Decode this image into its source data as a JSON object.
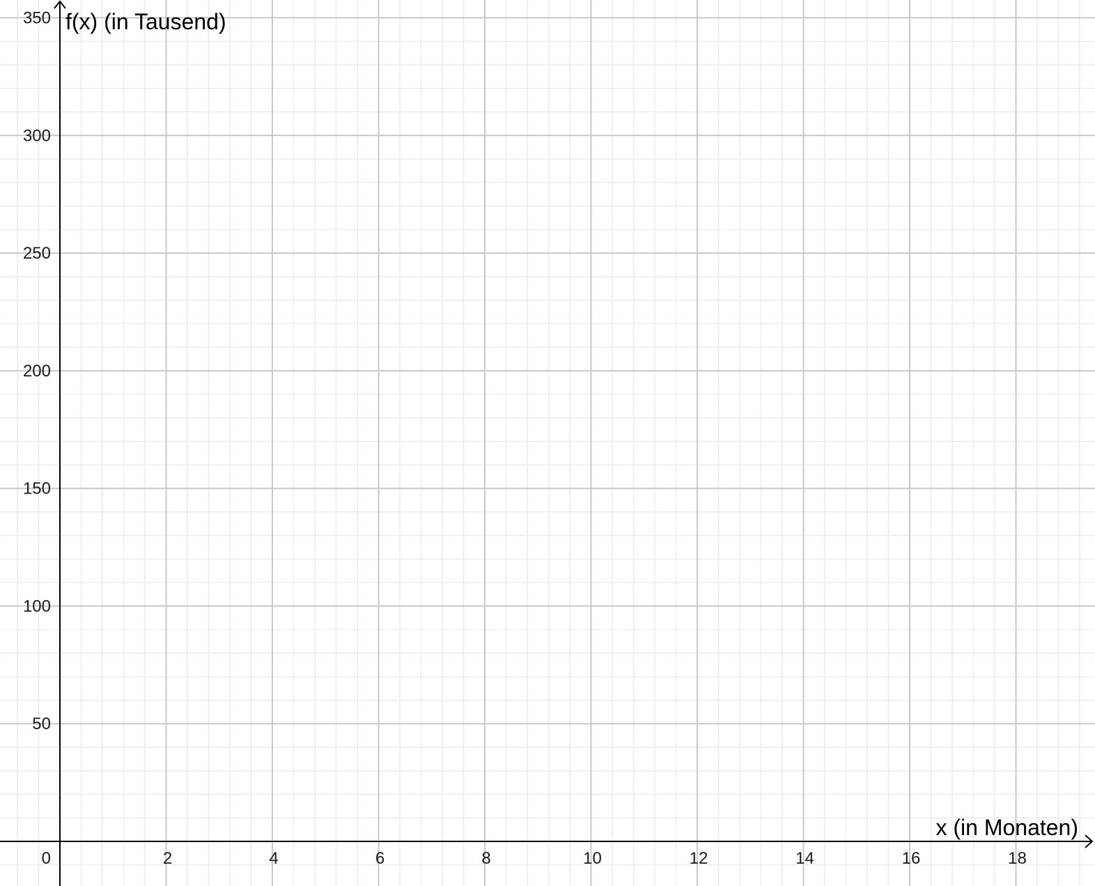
{
  "chart_data": {
    "type": "line",
    "title": "",
    "xlabel": "x (in Monaten)",
    "ylabel": "f(x) (in Tausend)",
    "xlim": [
      -1,
      19.4
    ],
    "ylim": [
      -18,
      350
    ],
    "x_ticks": [
      2,
      4,
      6,
      8,
      10,
      12,
      14,
      16,
      18
    ],
    "y_ticks": [
      50,
      100,
      150,
      200,
      250,
      300,
      350
    ],
    "origin_label": "0",
    "grid": {
      "major": true,
      "minor": true,
      "x_major_step": 2,
      "x_minor_step": 0.4,
      "y_major_step": 50,
      "y_minor_step": 10
    },
    "series": [],
    "colors": {
      "major_grid": "#c8c8c8",
      "minor_grid": "#ececec",
      "axis": "#000000",
      "tick_text": "#1a1a1a"
    }
  }
}
